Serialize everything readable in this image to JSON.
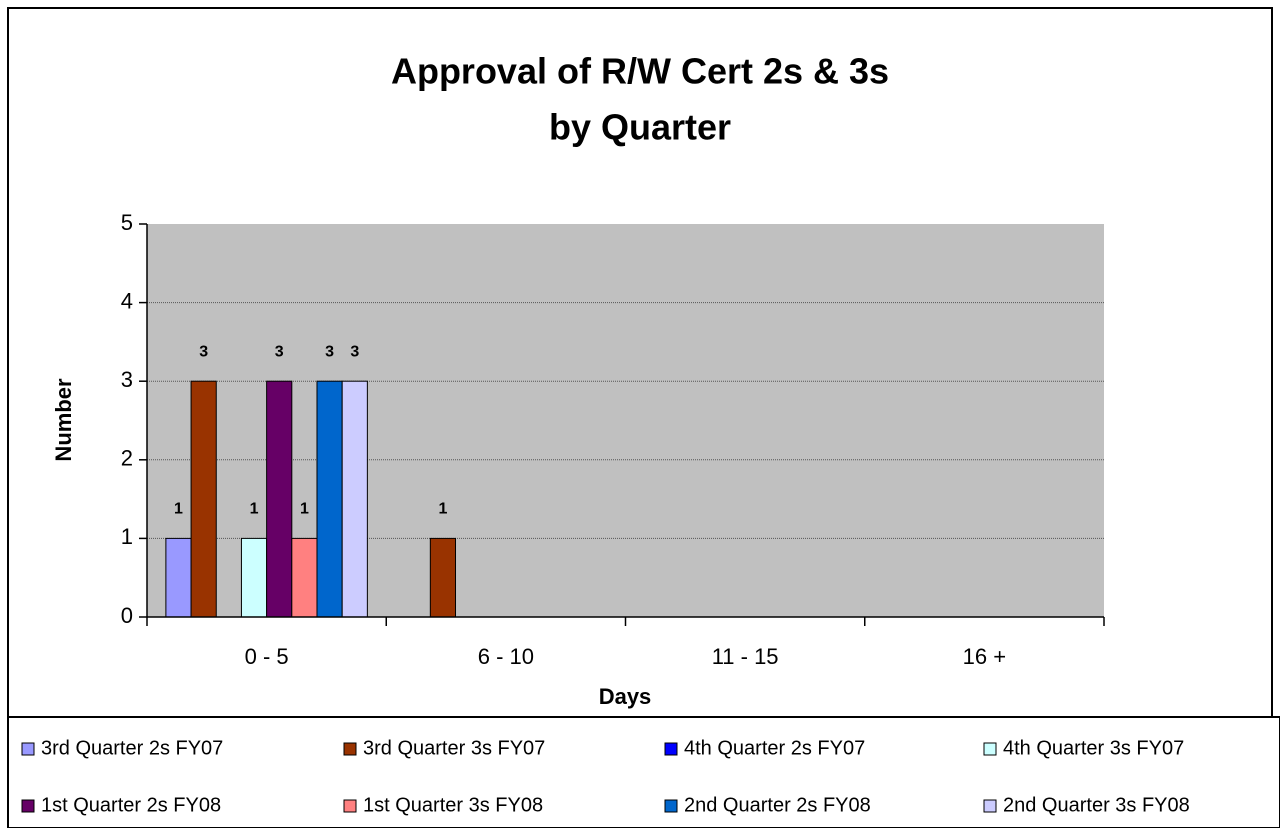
{
  "chart_data": {
    "type": "bar",
    "title": "Approval of R/W Cert 2s & 3s",
    "subtitle": "by  Quarter",
    "x_label": "Days",
    "y_label": "Number",
    "categories": [
      "0 - 5",
      "6 - 10",
      "11 - 15",
      "16 +"
    ],
    "series": [
      {
        "name": "3rd Quarter 2s FY07",
        "color": "#9999ff",
        "values": [
          1,
          null,
          null,
          null
        ]
      },
      {
        "name": "3rd Quarter 3s FY07",
        "color": "#993300",
        "values": [
          3,
          1,
          null,
          null
        ]
      },
      {
        "name": "4th Quarter 2s FY07",
        "color": "#0000ff",
        "values": [
          null,
          null,
          null,
          null
        ]
      },
      {
        "name": "4th Quarter 3s FY07",
        "color": "#ccffff",
        "values": [
          1,
          null,
          null,
          null
        ]
      },
      {
        "name": "1st Quarter 2s FY08",
        "color": "#660066",
        "values": [
          3,
          null,
          null,
          null
        ]
      },
      {
        "name": "1st Quarter 3s FY08",
        "color": "#ff8080",
        "values": [
          1,
          null,
          null,
          null
        ]
      },
      {
        "name": "2nd Quarter 2s FY08",
        "color": "#0066cc",
        "values": [
          3,
          null,
          null,
          null
        ]
      },
      {
        "name": "2nd Quarter 3s FY08",
        "color": "#ccccff",
        "values": [
          3,
          null,
          null,
          null
        ]
      }
    ],
    "ylim": [
      0,
      5
    ],
    "yticks": [
      0,
      1,
      2,
      3,
      4,
      5
    ],
    "grid": true,
    "legend": "bottom"
  }
}
